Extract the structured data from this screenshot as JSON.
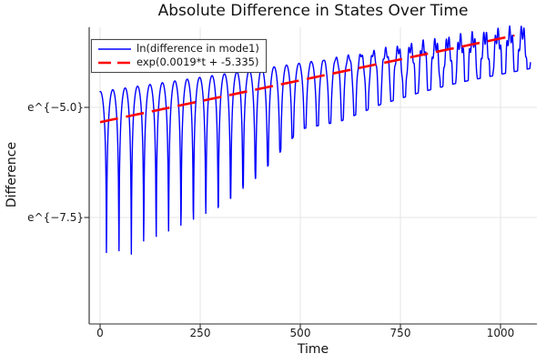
{
  "title": "Absolute Difference in States Over Time",
  "chart_data": {
    "type": "line",
    "title": "Absolute Difference in States Over Time",
    "xlabel": "Time",
    "ylabel": "Difference",
    "y_scale": "ln",
    "grid": true,
    "legend_position": "top-left",
    "xlim": [
      -27.3,
      1090.9
    ],
    "ylim_ln": [
      -9.917,
      -3.182
    ],
    "x_ticks": [
      {
        "value": 0,
        "label": "0"
      },
      {
        "value": 250,
        "label": "250"
      },
      {
        "value": 500,
        "label": "500"
      },
      {
        "value": 750,
        "label": "750"
      },
      {
        "value": 1000,
        "label": "1000"
      }
    ],
    "y_ticks": [
      {
        "ln_value": -5.0,
        "label": "e^{−5.0}"
      },
      {
        "ln_value": -7.5,
        "label": "e^{−7.5}"
      }
    ],
    "style": {
      "grid_color": "#dedede",
      "axis_color": "#2b2b2b",
      "text_color": "#141414",
      "background": "#ffffff"
    },
    "series": [
      {
        "name": "ln(difference in mode1)",
        "color": "#0000ff",
        "line_style": "solid",
        "line_width": 1.4,
        "model": {
          "kind": "ln_abs_oscillation",
          "t_start": 0,
          "t_end": 1075,
          "t_step": 0.75,
          "oscillation_period": 31,
          "first_zero_t": 16,
          "peak_envelope_ln": {
            "intercept": -4.64,
            "slope": 0.00129
          },
          "dip_depth_ln_table": {
            "t": [
              0,
              50,
              100,
              150,
              200,
              300,
              400,
              500,
              600,
              700,
              800,
              900,
              1000,
              1100
            ],
            "depth": [
              5.6,
              4.1,
              3.55,
              3.45,
              3.3,
              3.0,
              2.4,
              1.5,
              1.45,
              1.2,
              1.05,
              0.95,
              0.9,
              0.85
            ]
          },
          "top_wiggle": {
            "amplitude": 0.17,
            "period": 7.2,
            "ramp_start_t": 480,
            "ramp_end_t": 950,
            "phase": 1.2
          }
        }
      },
      {
        "name": "exp(0.0019*t + -5.335)",
        "color": "#ff0000",
        "line_style": "dashed",
        "line_width": 2.6,
        "dash_pattern": [
          20,
          9
        ],
        "model": {
          "kind": "ln_line",
          "slope": 0.0019,
          "intercept": -5.335,
          "t_start": 0,
          "t_end": 1035
        }
      }
    ]
  }
}
